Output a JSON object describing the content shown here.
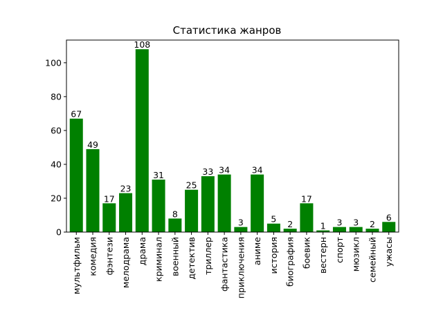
{
  "chart_data": {
    "type": "bar",
    "title": "Статистика жанров",
    "xlabel": "",
    "ylabel": "",
    "ylim": [
      0,
      113.4
    ],
    "yticks": [
      0,
      20,
      40,
      60,
      80,
      100
    ],
    "grid": false,
    "bar_color": "#008000",
    "categories": [
      "мультфильм",
      "комедия",
      "фэнтези",
      "мелодрама",
      "драма",
      "криминал",
      "военный",
      "детектив",
      "триллер",
      "фантастика",
      "приключения",
      "аниме",
      "история",
      "биография",
      "боевик",
      "вестерн",
      "спорт",
      "мюзикл",
      "семейный",
      "ужасы"
    ],
    "values": [
      67,
      49,
      17,
      23,
      108,
      31,
      8,
      25,
      33,
      34,
      3,
      34,
      5,
      2,
      17,
      1,
      3,
      3,
      2,
      6
    ],
    "value_labels": [
      "67",
      "49",
      "17",
      "23",
      "108",
      "31",
      "8",
      "25",
      "33",
      "34",
      "3",
      "34",
      "5",
      "2",
      "17",
      "1",
      "3",
      "3",
      "2",
      "6"
    ]
  }
}
